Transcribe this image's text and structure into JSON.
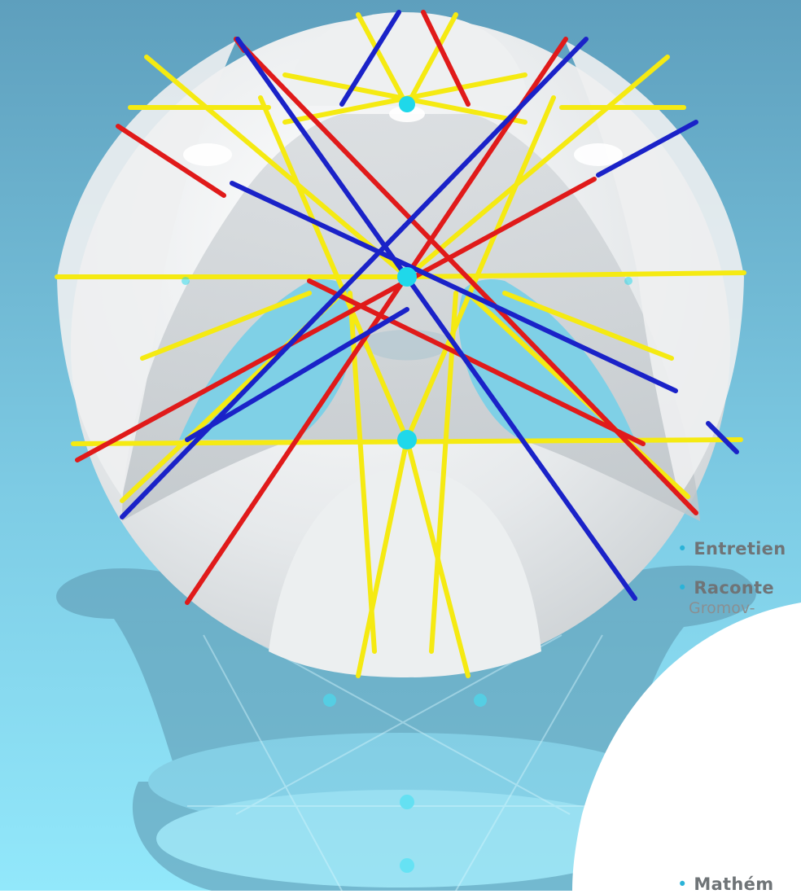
{
  "toc": {
    "items": [
      {
        "title": "Entretien",
        "subtitle": ""
      },
      {
        "title": "Raconte",
        "subtitle": "Gromov-"
      },
      {
        "title": "Mathém",
        "subtitle": ""
      }
    ]
  },
  "colors": {
    "background_top": "#5fa3c2",
    "background_bottom": "#8fe6fa",
    "surface": "#e9ecee",
    "line_red": "#e01a1a",
    "line_blue": "#1a22c8",
    "line_yellow": "#f5ea12",
    "point_cyan": "#1fd8ea",
    "panel": "#ffffff",
    "bullet": "#2ab3d8",
    "text": "#6f7477"
  }
}
